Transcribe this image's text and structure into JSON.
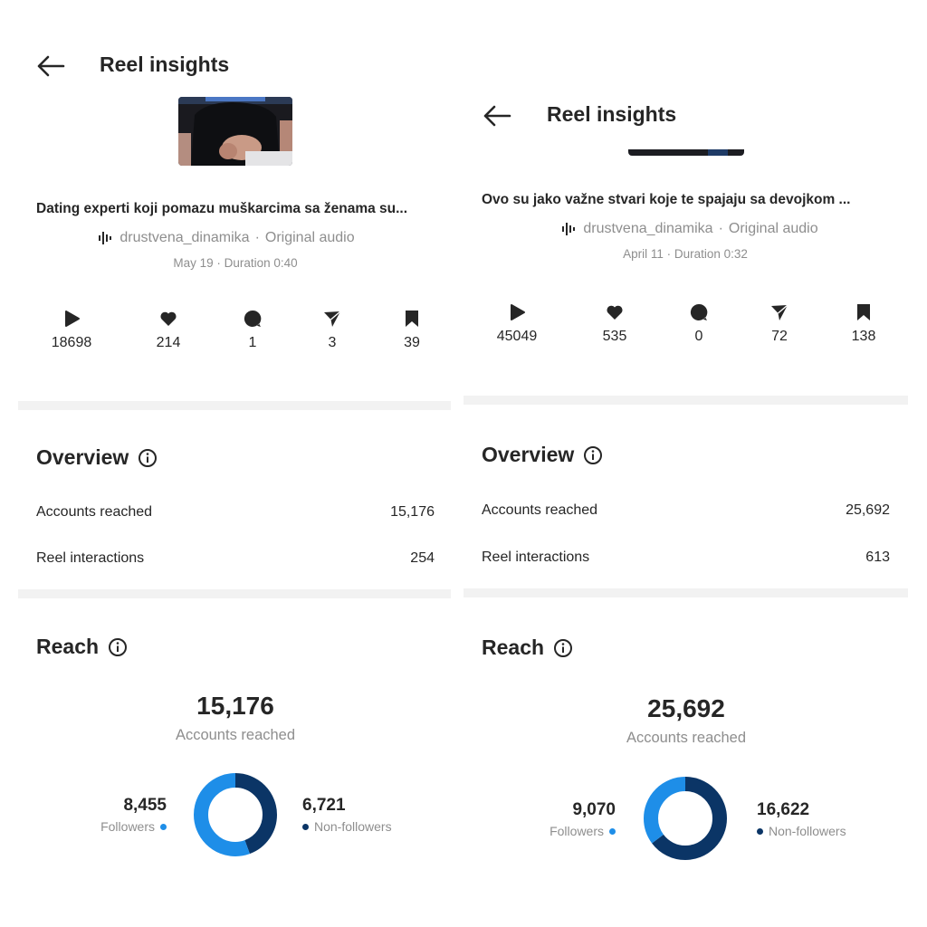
{
  "colors": {
    "followers": "#1e8ee8",
    "non_followers": "#0b3566",
    "divider": "#f2f2f2",
    "muted": "#8e8e8e"
  },
  "icons": {
    "back": "arrow-left-icon",
    "audio": "audio-wave-icon",
    "info": "info-icon",
    "plays": "play-icon",
    "likes": "heart-icon",
    "comments": "comment-icon",
    "shares": "send-icon",
    "saves": "bookmark-icon"
  },
  "panels": [
    {
      "header": {
        "title": "Reel insights"
      },
      "caption": "Dating experti koji pomazu muškarcima sa ženama su...",
      "audio": {
        "account": "drustvena_dinamika",
        "separator": "·",
        "track": "Original audio"
      },
      "meta": "May 19 · Duration 0:40",
      "stats": {
        "plays": "18698",
        "likes": "214",
        "comments": "1",
        "shares": "3",
        "saves": "39"
      },
      "overview": {
        "title": "Overview",
        "rows": [
          {
            "label": "Accounts reached",
            "value": "15,176"
          },
          {
            "label": "Reel interactions",
            "value": "254"
          }
        ]
      },
      "reach": {
        "title": "Reach",
        "total": "15,176",
        "total_label": "Accounts reached",
        "followers": {
          "value": "8,455",
          "label": "Followers",
          "count": 8455
        },
        "non_followers": {
          "value": "6,721",
          "label": "Non-followers",
          "count": 6721
        }
      }
    },
    {
      "header": {
        "title": "Reel insights"
      },
      "caption": "Ovo su jako važne stvari koje te spajaju sa devojkom ...",
      "audio": {
        "account": "drustvena_dinamika",
        "separator": "·",
        "track": "Original audio"
      },
      "meta": "April 11 · Duration 0:32",
      "stats": {
        "plays": "45049",
        "likes": "535",
        "comments": "0",
        "shares": "72",
        "saves": "138"
      },
      "overview": {
        "title": "Overview",
        "rows": [
          {
            "label": "Accounts reached",
            "value": "25,692"
          },
          {
            "label": "Reel interactions",
            "value": "613"
          }
        ]
      },
      "reach": {
        "title": "Reach",
        "total": "25,692",
        "total_label": "Accounts reached",
        "followers": {
          "value": "9,070",
          "label": "Followers",
          "count": 9070
        },
        "non_followers": {
          "value": "16,622",
          "label": "Non-followers",
          "count": 16622
        }
      }
    }
  ]
}
